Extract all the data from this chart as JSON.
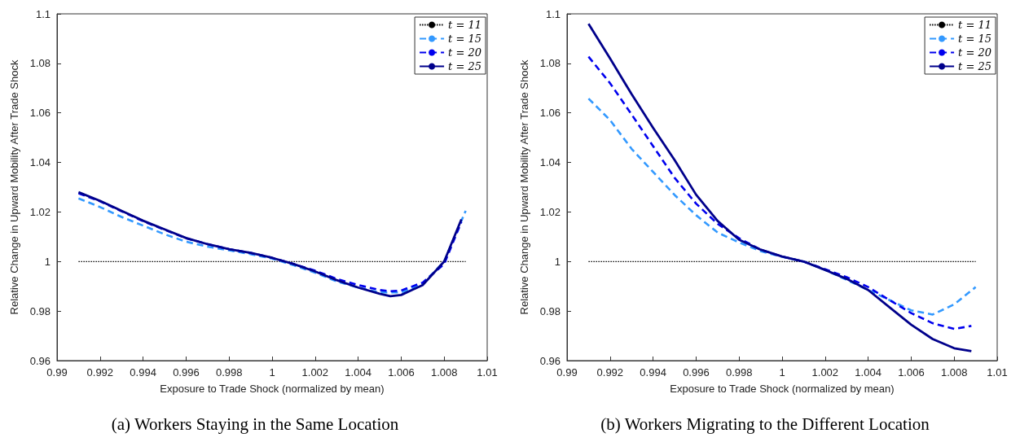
{
  "chart_data": [
    {
      "type": "line",
      "title": "(a) Workers Staying in the Same Location",
      "xlabel": "Exposure to Trade Shock (normalized by mean)",
      "ylabel": "Relative Change in Upward Mobility After Trade Shock",
      "xlim": [
        0.99,
        1.01
      ],
      "xticks": [
        0.99,
        0.992,
        0.994,
        0.996,
        0.998,
        1,
        1.002,
        1.004,
        1.006,
        1.008,
        1.01
      ],
      "ylim": [
        0.96,
        1.1
      ],
      "yticks": [
        0.96,
        0.98,
        1,
        1.02,
        1.04,
        1.06,
        1.08,
        1.1
      ],
      "grid": false,
      "legend": "top right",
      "marker": "none",
      "series": [
        {
          "name": "t = 11",
          "color": "#000000",
          "line_style": "dotted",
          "x": [
            0.991,
            1.009
          ],
          "values": [
            1,
            1
          ]
        },
        {
          "name": "t = 15",
          "color": "#3399ff",
          "line_style": "dashed",
          "x": [
            0.991,
            0.992,
            0.993,
            0.994,
            0.995,
            0.996,
            0.997,
            0.998,
            0.999,
            1,
            1.001,
            1.002,
            1.003,
            1.004,
            1.005,
            1.006,
            1.007,
            1.008,
            1.009
          ],
          "values": [
            1.0255,
            1.022,
            1.018,
            1.0145,
            1.011,
            1.008,
            1.006,
            1.0045,
            1.003,
            1.0012,
            0.9985,
            0.9955,
            0.992,
            0.9895,
            0.9875,
            0.9875,
            0.991,
            1.0,
            1.0205
          ]
        },
        {
          "name": "t = 20",
          "color": "#0000ee",
          "line_style": "dashed",
          "x": [
            0.991,
            0.992,
            0.993,
            0.994,
            0.995,
            0.996,
            0.997,
            0.998,
            0.999,
            1,
            1.001,
            1.002,
            1.003,
            1.004,
            1.005,
            1.0055,
            1.006,
            1.007,
            1.008,
            1.0088
          ],
          "values": [
            1.0275,
            1.0243,
            1.0203,
            1.0163,
            1.0128,
            1.0094,
            1.007,
            1.005,
            1.0035,
            1.0015,
            0.999,
            0.9963,
            0.993,
            0.9905,
            0.9885,
            0.988,
            0.9883,
            0.9915,
            0.999,
            1.016
          ]
        },
        {
          "name": "t = 25",
          "color": "#00008b",
          "line_style": "solid",
          "x": [
            0.991,
            0.992,
            0.993,
            0.994,
            0.995,
            0.996,
            0.997,
            0.998,
            0.999,
            1,
            1.001,
            1.002,
            1.003,
            1.004,
            1.005,
            1.0055,
            1.006,
            1.007,
            1.008,
            1.0088
          ],
          "values": [
            1.028,
            1.0245,
            1.0205,
            1.0165,
            1.013,
            1.0095,
            1.007,
            1.005,
            1.0035,
            1.0015,
            0.999,
            0.996,
            0.9925,
            0.9895,
            0.987,
            0.986,
            0.9865,
            0.9905,
            1.0,
            1.017
          ]
        }
      ]
    },
    {
      "type": "line",
      "title": "(b) Workers Migrating to the Different Location",
      "xlabel": "Exposure to Trade Shock (normalized by mean)",
      "ylabel": "Relative Change in Upward Mobility After Trade Shock",
      "xlim": [
        0.99,
        1.01
      ],
      "xticks": [
        0.99,
        0.992,
        0.994,
        0.996,
        0.998,
        1,
        1.002,
        1.004,
        1.006,
        1.008,
        1.01
      ],
      "ylim": [
        0.96,
        1.1
      ],
      "yticks": [
        0.96,
        0.98,
        1,
        1.02,
        1.04,
        1.06,
        1.08,
        1.1
      ],
      "grid": false,
      "legend": "top right",
      "marker": "none",
      "series": [
        {
          "name": "t = 11",
          "color": "#000000",
          "line_style": "dotted",
          "x": [
            0.991,
            1.009
          ],
          "values": [
            1,
            1
          ]
        },
        {
          "name": "t = 15",
          "color": "#3399ff",
          "line_style": "dashed",
          "x": [
            0.991,
            0.992,
            0.993,
            0.994,
            0.995,
            0.996,
            0.997,
            0.998,
            0.999,
            1,
            1.001,
            1.002,
            1.003,
            1.004,
            1.005,
            1.006,
            1.007,
            1.008,
            1.009
          ],
          "values": [
            1.0658,
            1.0571,
            1.0455,
            1.0362,
            1.0269,
            1.0187,
            1.0117,
            1.0077,
            1.0042,
            1.0019,
            1.0,
            0.9966,
            0.9926,
            0.9885,
            0.9844,
            0.9803,
            0.9786,
            0.9827,
            0.9897
          ]
        },
        {
          "name": "t = 20",
          "color": "#0000ee",
          "line_style": "dashed",
          "x": [
            0.991,
            0.992,
            0.993,
            0.994,
            0.995,
            0.996,
            0.997,
            0.998,
            0.999,
            1,
            1.001,
            1.002,
            1.003,
            1.004,
            1.005,
            1.006,
            1.007,
            1.008,
            1.0088
          ],
          "values": [
            1.0827,
            1.072,
            1.0594,
            1.0466,
            1.0338,
            1.0234,
            1.0152,
            1.0094,
            1.0048,
            1.002,
            1.0,
            0.9969,
            0.9937,
            0.9897,
            0.9844,
            0.9792,
            0.9751,
            0.9728,
            0.974
          ]
        },
        {
          "name": "t = 25",
          "color": "#00008b",
          "line_style": "solid",
          "x": [
            0.991,
            0.992,
            0.993,
            0.994,
            0.995,
            0.996,
            0.997,
            0.998,
            0.999,
            1,
            1.001,
            1.002,
            1.003,
            1.004,
            1.005,
            1.006,
            1.007,
            1.008,
            1.0088
          ],
          "values": [
            1.096,
            1.082,
            1.0676,
            1.054,
            1.041,
            1.027,
            1.0164,
            1.0088,
            1.0048,
            1.002,
            1.0,
            0.9966,
            0.993,
            0.9885,
            0.9815,
            0.9745,
            0.9687,
            0.965,
            0.9638
          ]
        }
      ]
    }
  ]
}
